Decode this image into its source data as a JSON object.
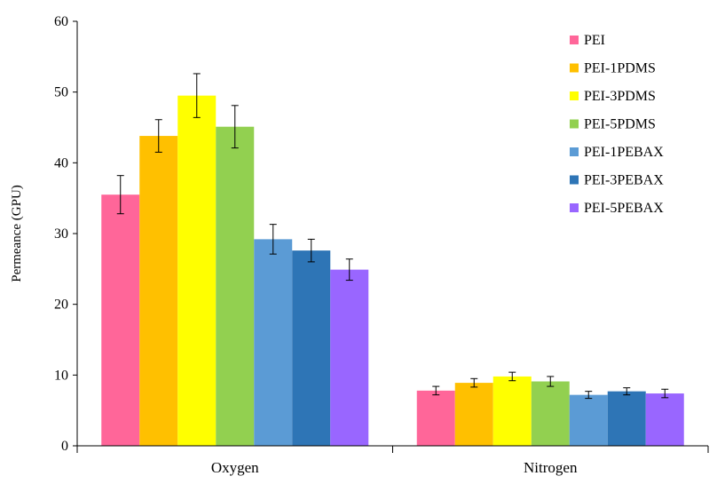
{
  "chart_data": {
    "type": "bar",
    "title": "",
    "xlabel": "",
    "ylabel": "Permeance (GPU)",
    "ylim": [
      0,
      60
    ],
    "yticks": [
      0,
      10,
      20,
      30,
      40,
      50,
      60
    ],
    "grid": false,
    "legend_position": "top-right",
    "categories": [
      "Oxygen",
      "Nitrogen"
    ],
    "series": [
      {
        "name": "PEI",
        "color": "#FF6699",
        "values": [
          35.5,
          7.8
        ],
        "errors": [
          2.7,
          0.6
        ]
      },
      {
        "name": "PEI-1PDMS",
        "color": "#FFC000",
        "values": [
          43.8,
          8.9
        ],
        "errors": [
          2.3,
          0.6
        ]
      },
      {
        "name": "PEI-3PDMS",
        "color": "#FFFF00",
        "values": [
          49.5,
          9.8
        ],
        "errors": [
          3.1,
          0.6
        ]
      },
      {
        "name": "PEI-5PDMS",
        "color": "#92D050",
        "values": [
          45.1,
          9.1
        ],
        "errors": [
          3.0,
          0.7
        ]
      },
      {
        "name": "PEI-1PEBAX",
        "color": "#5B9BD5",
        "values": [
          29.2,
          7.2
        ],
        "errors": [
          2.1,
          0.5
        ]
      },
      {
        "name": "PEI-3PEBAX",
        "color": "#2E75B6",
        "values": [
          27.6,
          7.7
        ],
        "errors": [
          1.6,
          0.5
        ]
      },
      {
        "name": "PEI-5PEBAX",
        "color": "#9966FF",
        "values": [
          24.9,
          7.4
        ],
        "errors": [
          1.5,
          0.6
        ]
      }
    ]
  }
}
